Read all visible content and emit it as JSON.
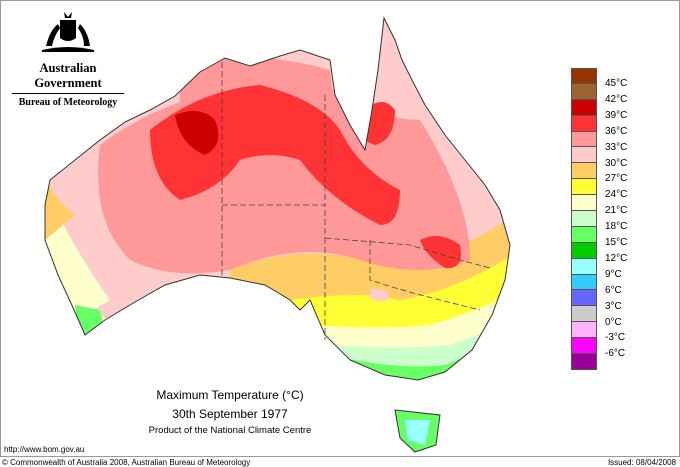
{
  "header": {
    "government": "Australian Government",
    "bureau": "Bureau of Meteorology",
    "logo": "commonwealth-coat-of-arms"
  },
  "map": {
    "title": "Maximum Temperature (°C)",
    "date": "30th September 1977",
    "product": "Product of the National Climate Centre"
  },
  "legend": {
    "colors": [
      "#993300",
      "#996633",
      "#cc0000",
      "#ff3333",
      "#ff9999",
      "#ffcccc",
      "#ffcc66",
      "#ffff33",
      "#ffffcc",
      "#ccffcc",
      "#66ff66",
      "#00cc00",
      "#99ffff",
      "#33ccff",
      "#6666ff",
      "#cccccc",
      "#ffb3ff",
      "#ff00ff",
      "#990099"
    ],
    "labels": [
      "45°C",
      "42°C",
      "39°C",
      "36°C",
      "33°C",
      "30°C",
      "27°C",
      "24°C",
      "21°C",
      "18°C",
      "15°C",
      "12°C",
      "9°C",
      "6°C",
      "3°C",
      "0°C",
      "-3°C",
      "-6°C"
    ]
  },
  "footer": {
    "url": "http://www.bom.gov.au",
    "copyright": "© Commonwealth of Australia 2008, Australian Bureau of Meteorology",
    "issued": "Issued: 08/04/2008"
  }
}
